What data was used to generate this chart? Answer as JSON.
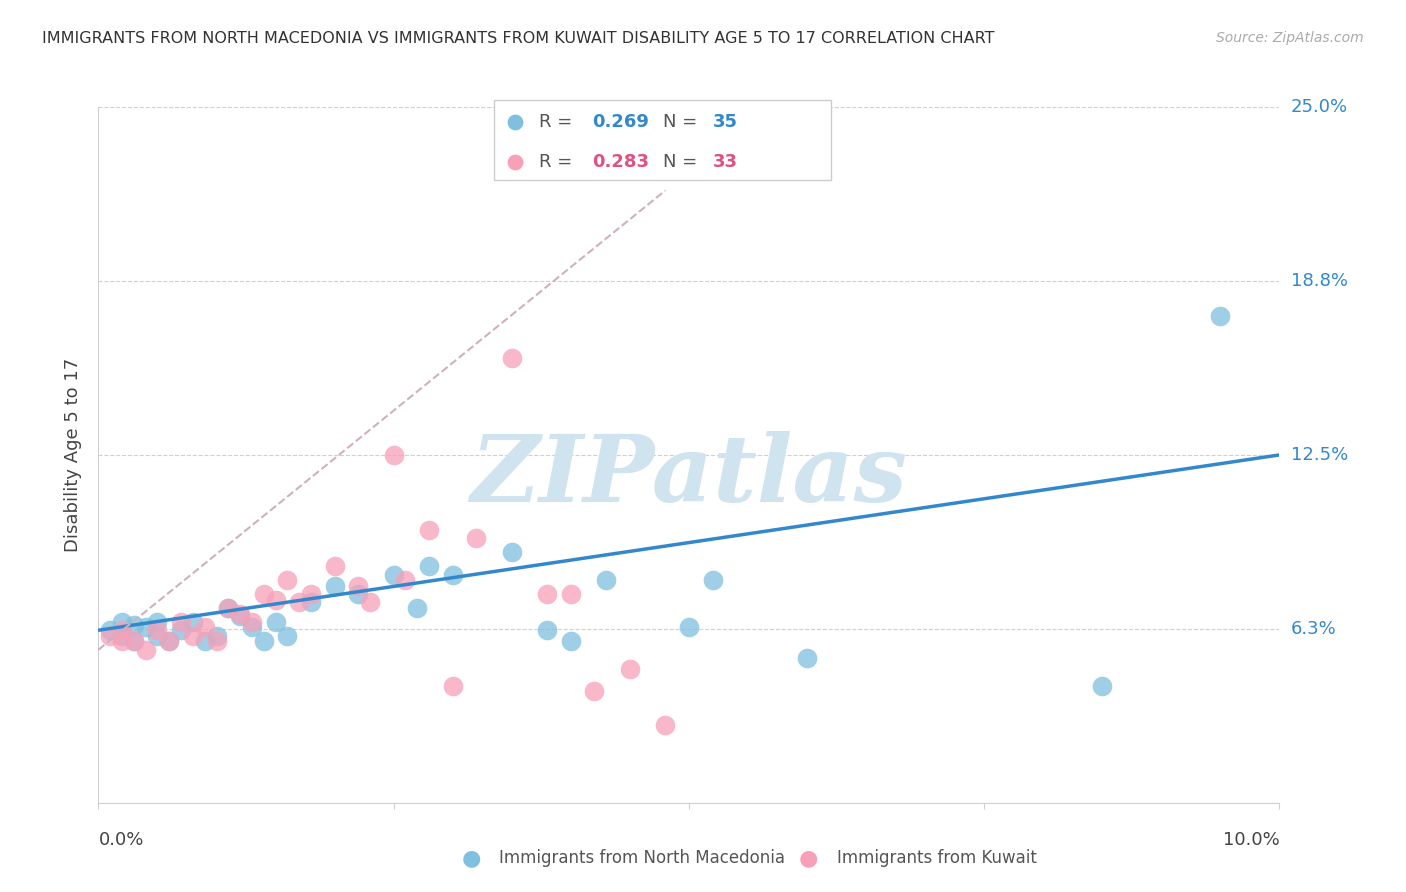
{
  "title": "IMMIGRANTS FROM NORTH MACEDONIA VS IMMIGRANTS FROM KUWAIT DISABILITY AGE 5 TO 17 CORRELATION CHART",
  "source": "Source: ZipAtlas.com",
  "ylabel": "Disability Age 5 to 17",
  "xlim": [
    0.0,
    0.1
  ],
  "ylim": [
    0.0,
    0.25
  ],
  "yticks": [
    0.0,
    0.0625,
    0.125,
    0.1875,
    0.25
  ],
  "ytick_labels": [
    "",
    "6.3%",
    "12.5%",
    "18.8%",
    "25.0%"
  ],
  "xticks": [
    0.0,
    0.025,
    0.05,
    0.075,
    0.1
  ],
  "legend1_R": "0.269",
  "legend1_N": "35",
  "legend2_R": "0.283",
  "legend2_N": "33",
  "color_blue": "#7fbfdf",
  "color_pink": "#f8a0b8",
  "color_blue_line": "#3388cc",
  "color_pink_line": "#e05080",
  "color_dashed": "#d0b0c0",
  "watermark_text": "ZIPatlas",
  "watermark_color": "#d0e4f0",
  "blue_scatter_x": [
    0.001,
    0.002,
    0.002,
    0.003,
    0.003,
    0.004,
    0.005,
    0.005,
    0.006,
    0.007,
    0.008,
    0.009,
    0.01,
    0.011,
    0.012,
    0.013,
    0.014,
    0.015,
    0.016,
    0.018,
    0.02,
    0.022,
    0.025,
    0.027,
    0.028,
    0.03,
    0.035,
    0.038,
    0.04,
    0.043,
    0.05,
    0.052,
    0.06,
    0.085,
    0.095
  ],
  "blue_scatter_y": [
    0.062,
    0.06,
    0.065,
    0.058,
    0.064,
    0.063,
    0.06,
    0.065,
    0.058,
    0.062,
    0.065,
    0.058,
    0.06,
    0.07,
    0.067,
    0.063,
    0.058,
    0.065,
    0.06,
    0.072,
    0.078,
    0.075,
    0.082,
    0.07,
    0.085,
    0.082,
    0.09,
    0.062,
    0.058,
    0.08,
    0.063,
    0.08,
    0.052,
    0.042,
    0.175
  ],
  "pink_scatter_x": [
    0.001,
    0.002,
    0.002,
    0.003,
    0.004,
    0.005,
    0.006,
    0.007,
    0.008,
    0.009,
    0.01,
    0.011,
    0.012,
    0.013,
    0.014,
    0.015,
    0.016,
    0.017,
    0.018,
    0.02,
    0.022,
    0.023,
    0.025,
    0.026,
    0.028,
    0.03,
    0.032,
    0.035,
    0.038,
    0.04,
    0.042,
    0.045,
    0.048
  ],
  "pink_scatter_y": [
    0.06,
    0.062,
    0.058,
    0.058,
    0.055,
    0.062,
    0.058,
    0.065,
    0.06,
    0.063,
    0.058,
    0.07,
    0.068,
    0.065,
    0.075,
    0.073,
    0.08,
    0.072,
    0.075,
    0.085,
    0.078,
    0.072,
    0.125,
    0.08,
    0.098,
    0.042,
    0.095,
    0.16,
    0.075,
    0.075,
    0.04,
    0.048,
    0.028
  ],
  "blue_trend_x": [
    0.0,
    0.1
  ],
  "blue_trend_y": [
    0.062,
    0.125
  ],
  "pink_trend_x": [
    0.0,
    0.048
  ],
  "pink_trend_y": [
    0.055,
    0.22
  ],
  "grid_color": "#d0d0d0",
  "background_color": "#ffffff"
}
